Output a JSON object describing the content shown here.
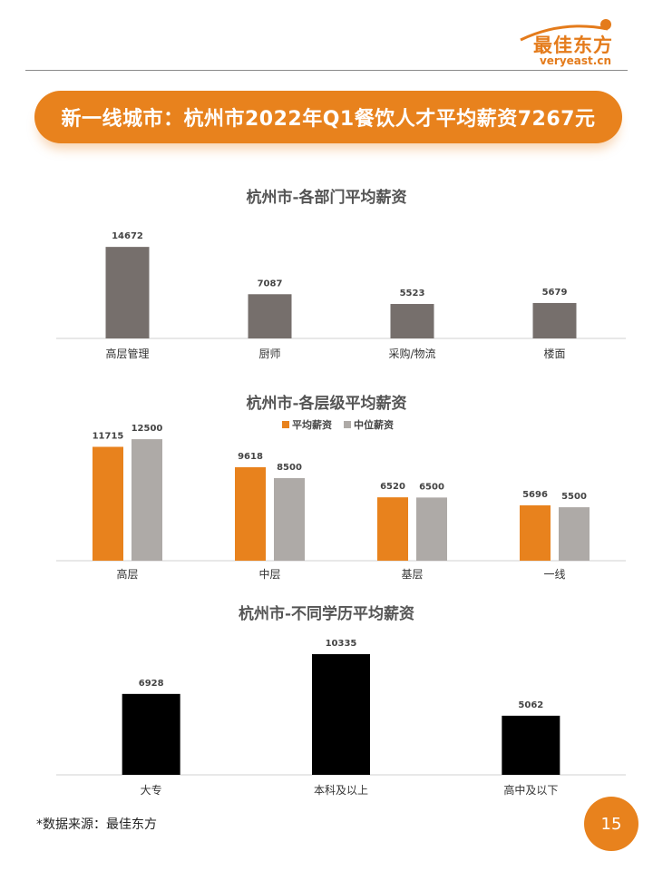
{
  "logo": {
    "cn": "最佳东方",
    "en": "veryeast.cn"
  },
  "page_title": "新一线城市：杭州市2022年Q1餐饮人才平均薪资7267元",
  "source_note": "*数据来源：最佳东方",
  "page_number": "15",
  "colors": {
    "accent": "#e8821d",
    "dept_bar": "#766f6c",
    "median_bar": "#aeaaa7",
    "edu_bar": "#000000"
  },
  "chart_data": [
    {
      "type": "bar",
      "title": "杭州市-各部门平均薪资",
      "categories": [
        "高层管理",
        "厨师",
        "采购/物流",
        "楼面"
      ],
      "values": [
        14672,
        7087,
        5523,
        5679
      ],
      "ylim": [
        0,
        16000
      ],
      "grid": false
    },
    {
      "type": "bar",
      "title": "杭州市-各层级平均薪资",
      "categories": [
        "高层",
        "中层",
        "基层",
        "一线"
      ],
      "series": [
        {
          "name": "平均薪资",
          "values": [
            11715,
            9618,
            6520,
            5696
          ]
        },
        {
          "name": "中位薪资",
          "values": [
            12500,
            8500,
            6500,
            5500
          ]
        }
      ],
      "legend": "top-right",
      "ylim": [
        0,
        14000
      ],
      "grid": false
    },
    {
      "type": "bar",
      "title": "杭州市-不同学历平均薪资",
      "categories": [
        "大专",
        "本科及以上",
        "高中及以下"
      ],
      "values": [
        6928,
        10335,
        5062
      ],
      "ylim": [
        0,
        11500
      ],
      "grid": false
    }
  ]
}
